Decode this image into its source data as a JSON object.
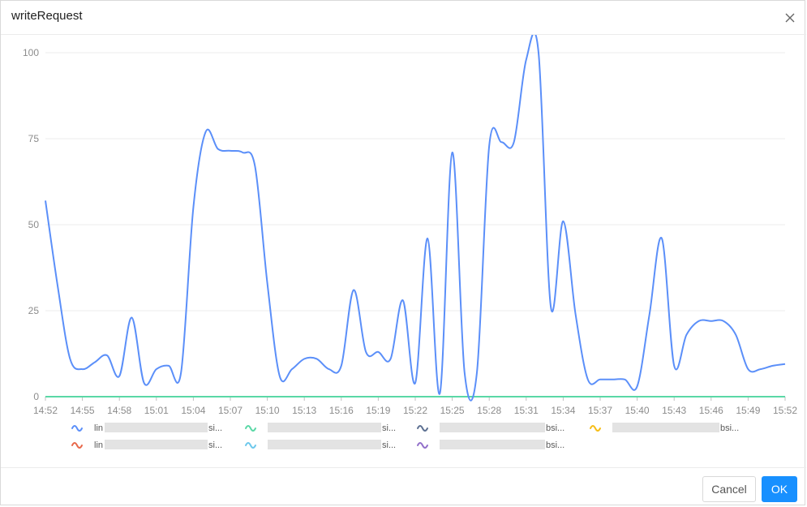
{
  "dialog": {
    "title": "writeRequest",
    "cancel_label": "Cancel",
    "ok_label": "OK",
    "close_icon": "close-icon"
  },
  "colors": {
    "series_blue": "#5b8ff9",
    "axis": "#8c8c8c",
    "grid": "#ececec",
    "ok_button": "#1890ff"
  },
  "chart_data": {
    "type": "line",
    "title": "",
    "xlabel": "",
    "ylabel": "",
    "ylim": [
      0,
      100
    ],
    "y_ticks": [
      0,
      25,
      50,
      75,
      100
    ],
    "x_tick_labels": [
      "14:52",
      "14:55",
      "14:58",
      "15:01",
      "15:04",
      "15:07",
      "15:10",
      "15:13",
      "15:16",
      "15:19",
      "15:22",
      "15:25",
      "15:28",
      "15:31",
      "15:34",
      "15:37",
      "15:40",
      "15:43",
      "15:46",
      "15:49",
      "15:52"
    ],
    "x_minutes_range": [
      0,
      60
    ],
    "grid": "horizontal",
    "legend_position": "bottom",
    "series": [
      {
        "name": "lin…si…",
        "color": "#5b8ff9",
        "points": [
          [
            0,
            57
          ],
          [
            1,
            32
          ],
          [
            2,
            11
          ],
          [
            3,
            8
          ],
          [
            4,
            10
          ],
          [
            5,
            12
          ],
          [
            6,
            6
          ],
          [
            7,
            23
          ],
          [
            8,
            4
          ],
          [
            9,
            8
          ],
          [
            10,
            9
          ],
          [
            11,
            7
          ],
          [
            12,
            55
          ],
          [
            13,
            77
          ],
          [
            14,
            72
          ],
          [
            15,
            71.5
          ],
          [
            16,
            71
          ],
          [
            17,
            67
          ],
          [
            18,
            33
          ],
          [
            19,
            6
          ],
          [
            20,
            8
          ],
          [
            21,
            11
          ],
          [
            22,
            11
          ],
          [
            23,
            8
          ],
          [
            24,
            9
          ],
          [
            25,
            31
          ],
          [
            26,
            13
          ],
          [
            27,
            13
          ],
          [
            28,
            11
          ],
          [
            29,
            28
          ],
          [
            30,
            4
          ],
          [
            31,
            46
          ],
          [
            32,
            1
          ],
          [
            33,
            71
          ],
          [
            34,
            7
          ],
          [
            35,
            7
          ],
          [
            36,
            73
          ],
          [
            37,
            74
          ],
          [
            38,
            74
          ],
          [
            39,
            98
          ],
          [
            40,
            100
          ],
          [
            41,
            26
          ],
          [
            42,
            51
          ],
          [
            43,
            24
          ],
          [
            44,
            5
          ],
          [
            45,
            5
          ],
          [
            46,
            5
          ],
          [
            47,
            5
          ],
          [
            48,
            3
          ],
          [
            49,
            24
          ],
          [
            50,
            46
          ],
          [
            51,
            9
          ],
          [
            52,
            18
          ],
          [
            53,
            22
          ],
          [
            54,
            22
          ],
          [
            55,
            22
          ],
          [
            56,
            18
          ],
          [
            57,
            8
          ],
          [
            58,
            8
          ],
          [
            59,
            9
          ],
          [
            60,
            9.5
          ]
        ]
      },
      {
        "name": "…si…",
        "color": "#5ad8a6",
        "points": [
          [
            0,
            0
          ],
          [
            60,
            0
          ]
        ]
      },
      {
        "name": "…bsi…",
        "color": "#5d7092",
        "points": [
          [
            0,
            0
          ],
          [
            60,
            0
          ]
        ]
      },
      {
        "name": "…bsi…",
        "color": "#f6bd16",
        "points": [
          [
            0,
            0
          ],
          [
            60,
            0
          ]
        ]
      },
      {
        "name": "lin…si…",
        "color": "#e8684a",
        "points": [
          [
            0,
            0
          ],
          [
            60,
            0
          ]
        ]
      },
      {
        "name": "…si…",
        "color": "#6dc8ec",
        "points": [
          [
            0,
            0
          ],
          [
            60,
            0
          ]
        ]
      },
      {
        "name": "…bsi…",
        "color": "#9270ca",
        "points": [
          [
            0,
            0
          ],
          [
            60,
            0
          ]
        ]
      }
    ],
    "legend_entries": [
      {
        "prefix": "lin",
        "suffix": "si...",
        "color": "#5b8ff9"
      },
      {
        "prefix": "",
        "suffix": "si...",
        "color": "#5ad8a6"
      },
      {
        "prefix": "",
        "suffix": "bsi...",
        "color": "#5d7092"
      },
      {
        "prefix": "",
        "suffix": "bsi...",
        "color": "#f6bd16"
      },
      {
        "prefix": "lin",
        "suffix": "si...",
        "color": "#e8684a"
      },
      {
        "prefix": "",
        "suffix": "si...",
        "color": "#6dc8ec"
      },
      {
        "prefix": "",
        "suffix": "bsi...",
        "color": "#9270ca"
      }
    ]
  }
}
